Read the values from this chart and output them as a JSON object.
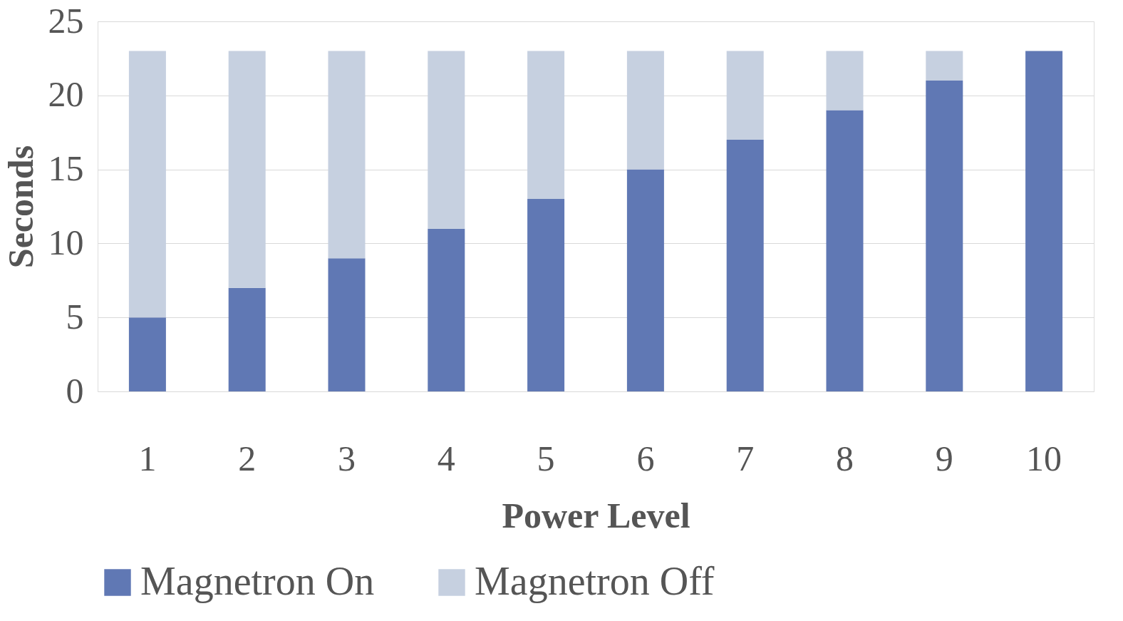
{
  "chart_data": {
    "type": "bar",
    "stacked": true,
    "xlabel": "Power Level",
    "ylabel": "Seconds",
    "categories": [
      "1",
      "2",
      "3",
      "4",
      "5",
      "6",
      "7",
      "8",
      "9",
      "10"
    ],
    "series": [
      {
        "name": "Magnetron On",
        "color": "#6078b4",
        "values": [
          5,
          7,
          9,
          11,
          13,
          15,
          17,
          19,
          21,
          23
        ]
      },
      {
        "name": "Magnetron Off",
        "color": "#c6d0e0",
        "values": [
          18,
          16,
          14,
          12,
          10,
          8,
          6,
          4,
          2,
          0
        ]
      }
    ],
    "ylim": [
      0,
      25
    ],
    "yticks": [
      0,
      5,
      10,
      15,
      20,
      25
    ],
    "grid": "y",
    "legend": "bottom"
  }
}
